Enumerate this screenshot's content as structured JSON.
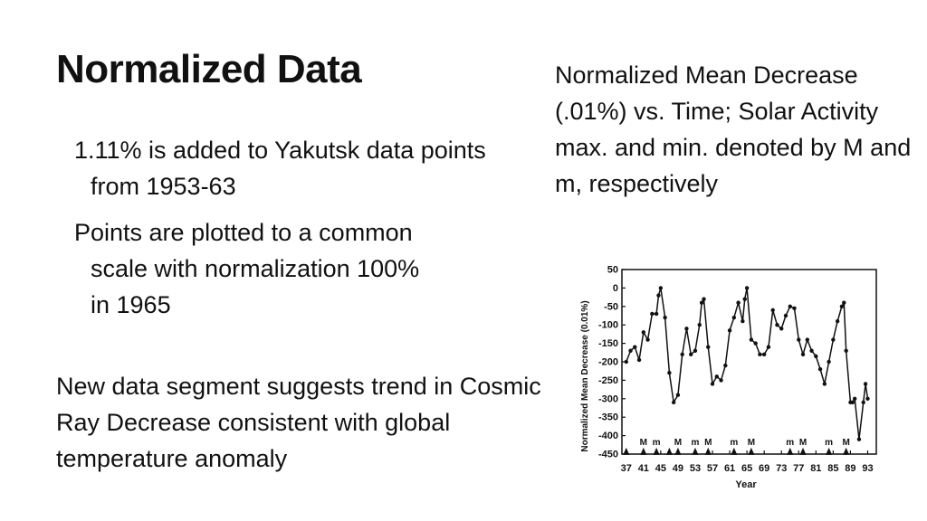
{
  "slide": {
    "title": "Normalized Data",
    "bullet_1": "1.11% is added to Yakutsk data points from 1953-63",
    "bullet_2": "Points are plotted to a common scale with normalization 100% in 1965",
    "bullet_3": "New data segment suggests trend in Cosmic Ray Decrease consistent with global temperature anomaly",
    "caption": "Normalized Mean Decrease (.01%) vs. Time; Solar Activity max. and min. denoted by M and m, respectively"
  },
  "chart_data": {
    "type": "line",
    "xlabel": "Year",
    "ylabel": "Normalized Mean Decrease (0.01%)",
    "xlim": [
      36,
      95
    ],
    "ylim": [
      -450,
      50
    ],
    "xticks": [
      37,
      41,
      45,
      49,
      53,
      57,
      61,
      65,
      69,
      73,
      77,
      81,
      85,
      89,
      93
    ],
    "yticks": [
      50,
      0,
      -50,
      -100,
      -150,
      -200,
      -250,
      -300,
      -350,
      -400,
      -450
    ],
    "grid": false,
    "legend": "none",
    "series": [
      {
        "x": [
          37,
          38,
          39,
          40,
          41,
          42,
          43,
          44,
          44.5,
          45,
          46,
          47,
          48,
          49,
          50,
          51,
          52,
          53,
          54,
          54.5,
          55,
          56,
          57,
          58,
          59,
          60,
          61,
          62,
          63,
          64,
          64.5,
          65,
          66,
          67,
          68,
          69,
          70,
          71,
          72,
          73,
          74,
          75,
          76,
          77,
          78,
          79,
          80,
          81,
          82,
          83,
          84,
          85,
          86,
          87,
          87.5,
          88,
          89,
          89.5,
          90,
          91,
          92,
          92.5,
          93
        ],
        "y": [
          -200,
          -170,
          -160,
          -195,
          -120,
          -140,
          -70,
          -70,
          -20,
          0,
          -80,
          -230,
          -310,
          -290,
          -180,
          -110,
          -180,
          -170,
          -100,
          -40,
          -30,
          -160,
          -260,
          -240,
          -250,
          -210,
          -115,
          -80,
          -40,
          -90,
          -30,
          0,
          -140,
          -150,
          -180,
          -180,
          -160,
          -60,
          -100,
          -110,
          -75,
          -50,
          -55,
          -140,
          -180,
          -140,
          -170,
          -185,
          -220,
          -260,
          -200,
          -140,
          -90,
          -50,
          -40,
          -170,
          -310,
          -310,
          -300,
          -410,
          -310,
          -260,
          -300
        ],
        "color": "#111111"
      }
    ],
    "markers": [
      {
        "year": 37,
        "label": ""
      },
      {
        "year": 41,
        "label": "M"
      },
      {
        "year": 44,
        "label": "m"
      },
      {
        "year": 47,
        "label": ""
      },
      {
        "year": 49,
        "label": "M"
      },
      {
        "year": 53,
        "label": "m"
      },
      {
        "year": 56,
        "label": "M"
      },
      {
        "year": 62,
        "label": "m"
      },
      {
        "year": 66,
        "label": "M"
      },
      {
        "year": 75,
        "label": "m"
      },
      {
        "year": 78,
        "label": "M"
      },
      {
        "year": 84,
        "label": "m"
      },
      {
        "year": 88,
        "label": "M"
      }
    ]
  }
}
